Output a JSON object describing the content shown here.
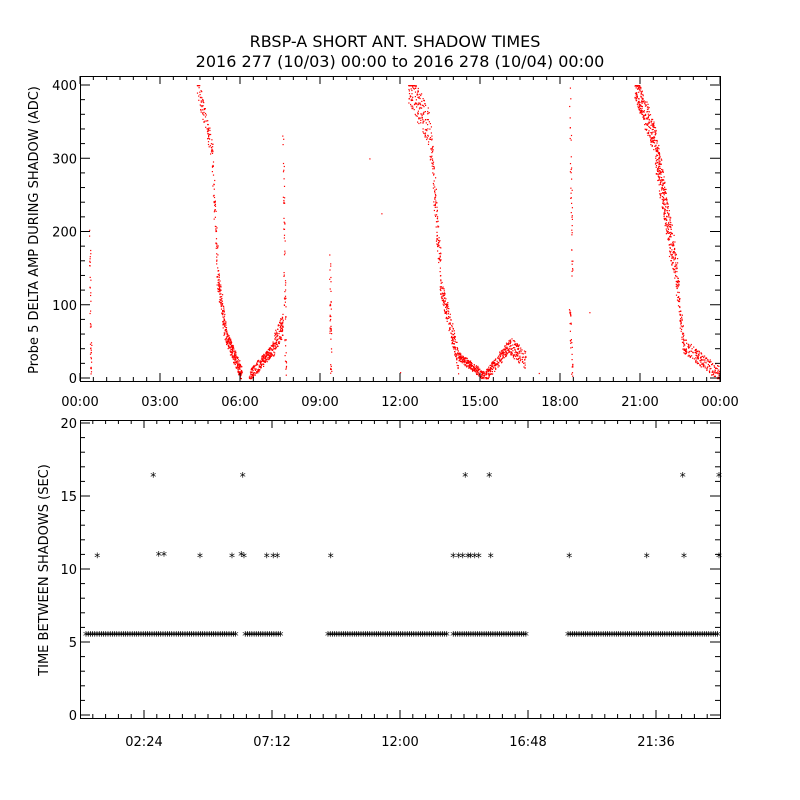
{
  "chart_data": [
    {
      "type": "scatter",
      "title": "RBSP-A SHORT ANT. SHADOW TIMES",
      "subtitle": "2016 277 (10/03) 00:00 to 2016 278 (10/04) 00:00",
      "ylabel": "Probe 5 DELTA AMP DURING SHADOW (ADC)",
      "xlabel": "",
      "xlim": [
        0,
        24
      ],
      "ylim": [
        0,
        400
      ],
      "x_tick_labels": [
        "00:00",
        "03:00",
        "06:00",
        "09:00",
        "12:00",
        "15:00",
        "18:00",
        "21:00",
        "00:00"
      ],
      "x_tick_values": [
        0,
        3,
        6,
        9,
        12,
        15,
        18,
        21,
        24
      ],
      "y_tick_labels": [
        "0",
        "100",
        "200",
        "300",
        "400"
      ],
      "y_tick_values": [
        0,
        100,
        200,
        300,
        400
      ],
      "color": "#ff0000",
      "series": [
        {
          "name": "delta-amp",
          "segments": [
            {
              "x0": 0.35,
              "x1": 0.4,
              "y0": 200,
              "y1": 5,
              "n": 40,
              "spread": 10
            },
            {
              "x0": 4.4,
              "x1": 4.95,
              "y0": 400,
              "y1": 310,
              "n": 90,
              "spread": 15
            },
            {
              "x0": 4.95,
              "x1": 5.15,
              "y0": 300,
              "y1": 150,
              "n": 60,
              "spread": 20
            },
            {
              "x0": 5.15,
              "x1": 5.45,
              "y0": 140,
              "y1": 60,
              "n": 110,
              "spread": 14
            },
            {
              "x0": 5.45,
              "x1": 6.05,
              "y0": 60,
              "y1": 5,
              "n": 220,
              "spread": 10
            },
            {
              "x0": 6.35,
              "x1": 7.2,
              "y0": 3,
              "y1": 40,
              "n": 220,
              "spread": 8
            },
            {
              "x0": 7.2,
              "x1": 7.6,
              "y0": 40,
              "y1": 75,
              "n": 110,
              "spread": 14
            },
            {
              "x0": 7.6,
              "x1": 7.7,
              "y0": 330,
              "y1": 5,
              "n": 60,
              "spread": 8
            },
            {
              "x0": 9.35,
              "x1": 9.4,
              "y0": 175,
              "y1": 5,
              "n": 40,
              "spread": 6
            },
            {
              "x0": 12.3,
              "x1": 13.1,
              "y0": 400,
              "y1": 340,
              "n": 160,
              "spread": 25
            },
            {
              "x0": 13.1,
              "x1": 13.5,
              "y0": 340,
              "y1": 150,
              "n": 120,
              "spread": 25
            },
            {
              "x0": 13.5,
              "x1": 14.2,
              "y0": 130,
              "y1": 20,
              "n": 180,
              "spread": 14
            },
            {
              "x0": 14.2,
              "x1": 15.15,
              "y0": 30,
              "y1": 3,
              "n": 200,
              "spread": 6
            },
            {
              "x0": 15.2,
              "x1": 16.1,
              "y0": 3,
              "y1": 45,
              "n": 200,
              "spread": 8
            },
            {
              "x0": 16.1,
              "x1": 16.7,
              "y0": 45,
              "y1": 25,
              "n": 110,
              "spread": 12
            },
            {
              "x0": 18.35,
              "x1": 18.45,
              "y0": 400,
              "y1": 130,
              "n": 40,
              "spread": 10
            },
            {
              "x0": 18.35,
              "x1": 18.45,
              "y0": 95,
              "y1": 5,
              "n": 30,
              "spread": 6
            },
            {
              "x0": 20.8,
              "x1": 21.5,
              "y0": 400,
              "y1": 330,
              "n": 220,
              "spread": 20
            },
            {
              "x0": 21.5,
              "x1": 22.4,
              "y0": 330,
              "y1": 130,
              "n": 380,
              "spread": 28
            },
            {
              "x0": 22.4,
              "x1": 22.6,
              "y0": 130,
              "y1": 50,
              "n": 60,
              "spread": 15
            },
            {
              "x0": 22.6,
              "x1": 24.0,
              "y0": 45,
              "y1": 5,
              "n": 200,
              "spread": 10
            }
          ]
        }
      ],
      "isolated_points": [
        [
          10.85,
          300
        ],
        [
          11.3,
          225
        ],
        [
          12.0,
          8
        ],
        [
          17.2,
          7
        ],
        [
          19.1,
          90
        ]
      ]
    },
    {
      "type": "scatter",
      "title": "",
      "ylabel": "TIME BETWEEN SHADOWS (SEC)",
      "xlabel": "",
      "xlim": [
        0,
        24
      ],
      "ylim": [
        0,
        20
      ],
      "x_tick_labels": [
        "02:24",
        "07:12",
        "12:00",
        "16:48",
        "21:36"
      ],
      "x_tick_values": [
        2.4,
        7.2,
        12.0,
        16.8,
        21.6
      ],
      "y_tick_labels": [
        "0",
        "5",
        "10",
        "15",
        "20"
      ],
      "y_tick_values": [
        0,
        5,
        10,
        15,
        20
      ],
      "marker": "*",
      "color": "#000000",
      "baseline_value": 5.4,
      "baseline_ranges": [
        [
          0.0,
          5.9
        ],
        [
          6.2,
          7.6
        ],
        [
          9.3,
          13.8
        ],
        [
          14.0,
          16.8
        ],
        [
          18.3,
          24.0
        ]
      ],
      "baseline_points": [
        [
          0.3,
          5.4
        ],
        [
          0.7,
          5.4
        ],
        [
          1.1,
          5.4
        ],
        [
          1.5,
          5.4
        ],
        [
          1.9,
          5.4
        ],
        [
          2.3,
          5.4
        ],
        [
          2.7,
          5.4
        ],
        [
          3.1,
          5.4
        ],
        [
          3.5,
          5.4
        ],
        [
          3.9,
          5.4
        ],
        [
          4.3,
          5.4
        ],
        [
          4.7,
          5.4
        ],
        [
          5.1,
          5.4
        ],
        [
          5.5,
          5.4
        ],
        [
          5.8,
          5.4
        ],
        [
          6.3,
          5.4
        ],
        [
          6.7,
          5.4
        ],
        [
          7.1,
          5.4
        ],
        [
          7.5,
          5.4
        ],
        [
          9.4,
          5.4
        ],
        [
          9.8,
          5.4
        ],
        [
          10.2,
          5.4
        ],
        [
          10.6,
          5.4
        ],
        [
          11.0,
          5.4
        ],
        [
          11.4,
          5.4
        ],
        [
          11.8,
          5.4
        ],
        [
          12.2,
          5.4
        ],
        [
          12.6,
          5.4
        ],
        [
          13.0,
          5.4
        ],
        [
          13.4,
          5.4
        ],
        [
          13.7,
          5.4
        ],
        [
          14.1,
          5.4
        ],
        [
          14.5,
          5.4
        ],
        [
          14.9,
          5.4
        ],
        [
          15.3,
          5.4
        ],
        [
          15.7,
          5.4
        ],
        [
          16.1,
          5.4
        ],
        [
          16.5,
          5.4
        ],
        [
          16.75,
          5.4
        ],
        [
          18.4,
          5.4
        ],
        [
          18.8,
          5.4
        ],
        [
          19.2,
          5.4
        ],
        [
          19.6,
          5.4
        ],
        [
          20.0,
          5.4
        ],
        [
          20.4,
          5.4
        ],
        [
          20.8,
          5.4
        ],
        [
          21.2,
          5.4
        ],
        [
          21.6,
          5.4
        ],
        [
          22.0,
          5.4
        ],
        [
          22.4,
          5.4
        ],
        [
          22.8,
          5.4
        ],
        [
          23.2,
          5.4
        ],
        [
          23.6,
          5.4
        ],
        [
          23.95,
          5.4
        ]
      ],
      "points": [
        [
          0.2,
          10.8
        ],
        [
          2.75,
          16.3
        ],
        [
          2.95,
          10.9
        ],
        [
          3.15,
          10.9
        ],
        [
          4.5,
          10.8
        ],
        [
          5.7,
          10.8
        ],
        [
          6.05,
          10.9
        ],
        [
          6.1,
          16.3
        ],
        [
          6.15,
          10.8
        ],
        [
          7.0,
          10.8
        ],
        [
          7.25,
          10.8
        ],
        [
          7.4,
          10.8
        ],
        [
          9.4,
          10.8
        ],
        [
          14.0,
          10.8
        ],
        [
          14.2,
          10.8
        ],
        [
          14.35,
          10.8
        ],
        [
          14.45,
          16.3
        ],
        [
          14.55,
          10.8
        ],
        [
          14.65,
          10.8
        ],
        [
          14.8,
          10.8
        ],
        [
          14.95,
          10.8
        ],
        [
          15.35,
          16.3
        ],
        [
          15.4,
          10.8
        ],
        [
          18.35,
          10.8
        ],
        [
          21.25,
          10.8
        ],
        [
          22.6,
          16.3
        ],
        [
          22.65,
          10.8
        ],
        [
          24.0,
          16.3
        ],
        [
          24.0,
          10.8
        ]
      ]
    }
  ]
}
